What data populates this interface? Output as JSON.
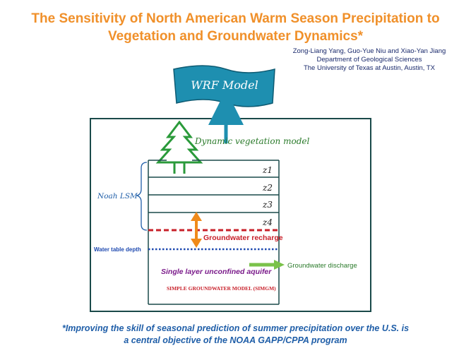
{
  "title": {
    "line1": "The Sensitivity of North American Warm Season Precipitation to",
    "line2": "Vegetation and Groundwater Dynamics*"
  },
  "authors": {
    "names": "Zong-Liang Yang, Guo-Yue Niu and Xiao-Yan Jiang",
    "department": "Department of Geological Sciences",
    "university": "The University of Texas at Austin, Austin, TX"
  },
  "diagram": {
    "wrf_label": "WRF Model",
    "dynamic_vegetation_label": "Dynamic vegetation model",
    "noah_label": "Noah LSM",
    "layers": [
      "z1",
      "z2",
      "z3",
      "z4"
    ],
    "groundwater_recharge_label": "Groundwater recharge",
    "water_table_label": "Water table depth",
    "aquifer_label": "Single layer unconfined aquifer",
    "groundwater_discharge_label": "Groundwater discharge",
    "simgm_label": "SIMPLE GROUNDWATER MODEL (SIMGM)",
    "colors": {
      "outer_box": "#1a4a4a",
      "wrf_fill": "#1e8fb0",
      "tree": "#2a9a3a",
      "arrow_blue": "#1e8fb0",
      "recharge_arrow": "#f08a1a",
      "dashed_red": "#c8202a",
      "water_table": "#1f4ab0",
      "discharge_arrow": "#7ac24a",
      "aquifer_text": "#7a1a8a"
    }
  },
  "footer": {
    "line1": "*Improving the skill of seasonal prediction of summer precipitation over the U.S. is",
    "line2": "a central objective of the NOAA GAPP/CPPA program"
  }
}
